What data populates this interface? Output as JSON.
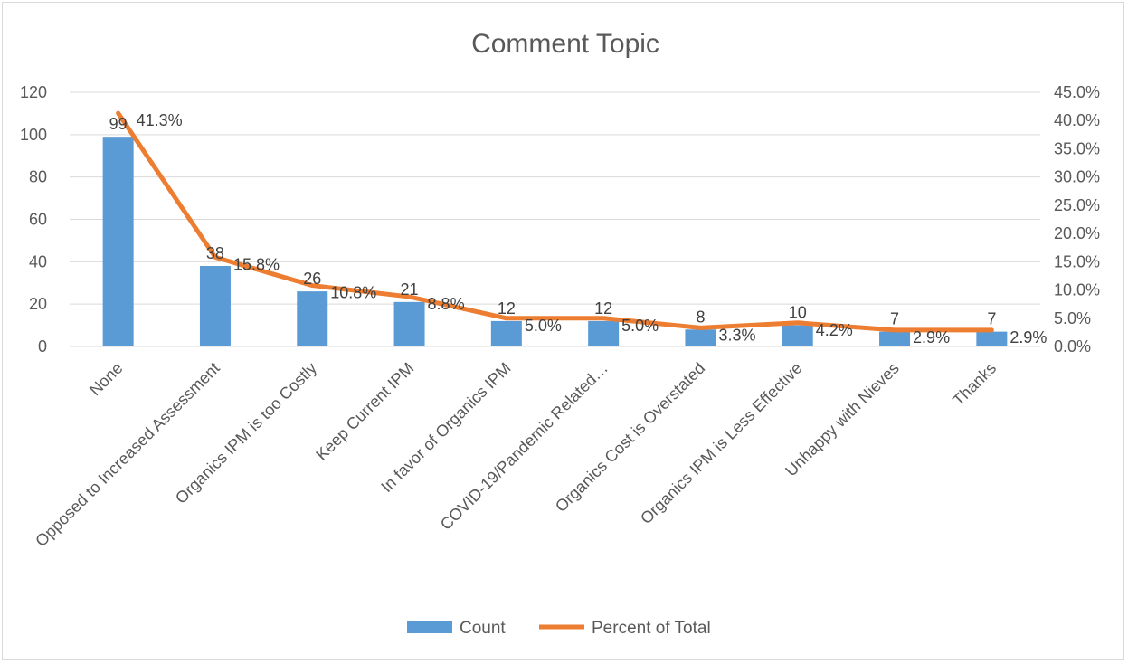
{
  "chart_data": {
    "type": "bar",
    "title": "Comment Topic",
    "categories": [
      "None",
      "Opposed to Increased Assessment",
      "Organics IPM is too Costly",
      "Keep Current IPM",
      "In favor of Organics IPM",
      "COVID-19/Pandemic Related…",
      "Organics Cost is Overstated",
      "Organics IPM is Less Effective",
      "Unhappy with Nieves",
      "Thanks"
    ],
    "series": [
      {
        "name": "Count",
        "type": "bar",
        "axis": "left",
        "color": "#5b9bd5",
        "values": [
          99,
          38,
          26,
          21,
          12,
          12,
          8,
          10,
          7,
          7
        ],
        "labels": [
          "99",
          "38",
          "26",
          "21",
          "12",
          "12",
          "8",
          "10",
          "7",
          "7"
        ]
      },
      {
        "name": "Percent of Total",
        "type": "line",
        "axis": "right",
        "color": "#ed7d31",
        "values": [
          41.3,
          15.8,
          10.8,
          8.8,
          5.0,
          5.0,
          3.3,
          4.2,
          2.9,
          2.9
        ],
        "labels": [
          "41.3%",
          "15.8%",
          "10.8%",
          "8.8%",
          "5.0%",
          "5.0%",
          "3.3%",
          "4.2%",
          "2.9%",
          "2.9%"
        ]
      }
    ],
    "y_left": {
      "range": [
        0,
        120
      ],
      "ticks": [
        "0",
        "20",
        "40",
        "60",
        "80",
        "100",
        "120"
      ]
    },
    "y_right": {
      "range": [
        0,
        45
      ],
      "ticks": [
        "0.0%",
        "5.0%",
        "10.0%",
        "15.0%",
        "20.0%",
        "25.0%",
        "30.0%",
        "35.0%",
        "40.0%",
        "45.0%"
      ]
    },
    "grid": true,
    "legend": "bottom",
    "gridline_color": "#d9d9d9"
  }
}
